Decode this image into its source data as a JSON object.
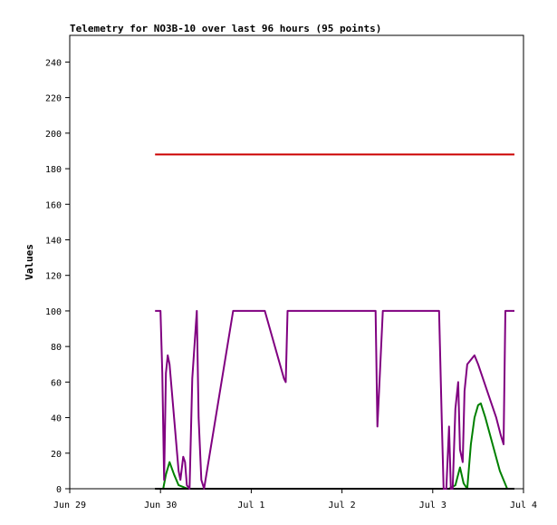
{
  "chart_data": {
    "type": "line",
    "title": "Telemetry for NO3B-10 over last 96 hours (95 points)",
    "ylabel": "Values",
    "xlabel": "",
    "ylim": [
      0,
      255
    ],
    "xlim": [
      0,
      5
    ],
    "yticks": [
      0,
      20,
      40,
      60,
      80,
      100,
      120,
      140,
      160,
      180,
      200,
      220,
      240
    ],
    "xticks": [
      {
        "value": 0,
        "label": "Jun 29"
      },
      {
        "value": 1,
        "label": "Jun 30"
      },
      {
        "value": 2,
        "label": "Jul 1"
      },
      {
        "value": 3,
        "label": "Jul 2"
      },
      {
        "value": 4,
        "label": "Jul 3"
      },
      {
        "value": 5,
        "label": "Jul 4"
      }
    ],
    "grid": false,
    "legend": "none",
    "series": [
      {
        "color": "#008000",
        "points": [
          [
            0.94,
            0
          ],
          [
            1.03,
            0
          ],
          [
            1.06,
            8
          ],
          [
            1.1,
            15
          ],
          [
            1.15,
            8
          ],
          [
            1.2,
            2
          ],
          [
            1.3,
            0
          ],
          [
            1.5,
            0
          ],
          [
            2.0,
            0
          ],
          [
            3.0,
            0
          ],
          [
            4.18,
            0
          ],
          [
            4.25,
            2
          ],
          [
            4.3,
            12
          ],
          [
            4.34,
            3
          ],
          [
            4.38,
            0
          ],
          [
            4.42,
            25
          ],
          [
            4.46,
            40
          ],
          [
            4.5,
            47
          ],
          [
            4.53,
            48
          ],
          [
            4.58,
            40
          ],
          [
            4.66,
            25
          ],
          [
            4.74,
            10
          ],
          [
            4.82,
            0
          ],
          [
            4.9,
            0
          ]
        ]
      },
      {
        "color": "#000000",
        "points": [
          [
            0.94,
            0
          ],
          [
            4.9,
            0
          ]
        ]
      },
      {
        "color": "#800080",
        "points": [
          [
            0.94,
            100
          ],
          [
            1.0,
            100
          ],
          [
            1.02,
            65
          ],
          [
            1.04,
            5
          ],
          [
            1.06,
            65
          ],
          [
            1.08,
            75
          ],
          [
            1.1,
            70
          ],
          [
            1.15,
            40
          ],
          [
            1.2,
            10
          ],
          [
            1.22,
            5
          ],
          [
            1.25,
            18
          ],
          [
            1.27,
            15
          ],
          [
            1.29,
            2
          ],
          [
            1.32,
            0
          ],
          [
            1.35,
            62
          ],
          [
            1.4,
            100
          ],
          [
            1.42,
            40
          ],
          [
            1.45,
            5
          ],
          [
            1.48,
            0
          ],
          [
            1.8,
            100
          ],
          [
            2.15,
            100
          ],
          [
            2.36,
            62
          ],
          [
            2.38,
            60
          ],
          [
            2.4,
            100
          ],
          [
            3.37,
            100
          ],
          [
            3.39,
            35
          ],
          [
            3.45,
            100
          ],
          [
            4.07,
            100
          ],
          [
            4.1,
            38
          ],
          [
            4.12,
            0
          ],
          [
            4.15,
            0
          ],
          [
            4.18,
            35
          ],
          [
            4.2,
            0
          ],
          [
            4.22,
            0
          ],
          [
            4.25,
            45
          ],
          [
            4.28,
            60
          ],
          [
            4.3,
            22
          ],
          [
            4.33,
            15
          ],
          [
            4.35,
            55
          ],
          [
            4.38,
            70
          ],
          [
            4.46,
            75
          ],
          [
            4.5,
            70
          ],
          [
            4.6,
            55
          ],
          [
            4.7,
            40
          ],
          [
            4.75,
            30
          ],
          [
            4.78,
            25
          ],
          [
            4.8,
            100
          ],
          [
            4.9,
            100
          ]
        ]
      },
      {
        "color": "#cc0000",
        "points": [
          [
            0.94,
            188
          ],
          [
            4.9,
            188
          ]
        ]
      }
    ]
  }
}
